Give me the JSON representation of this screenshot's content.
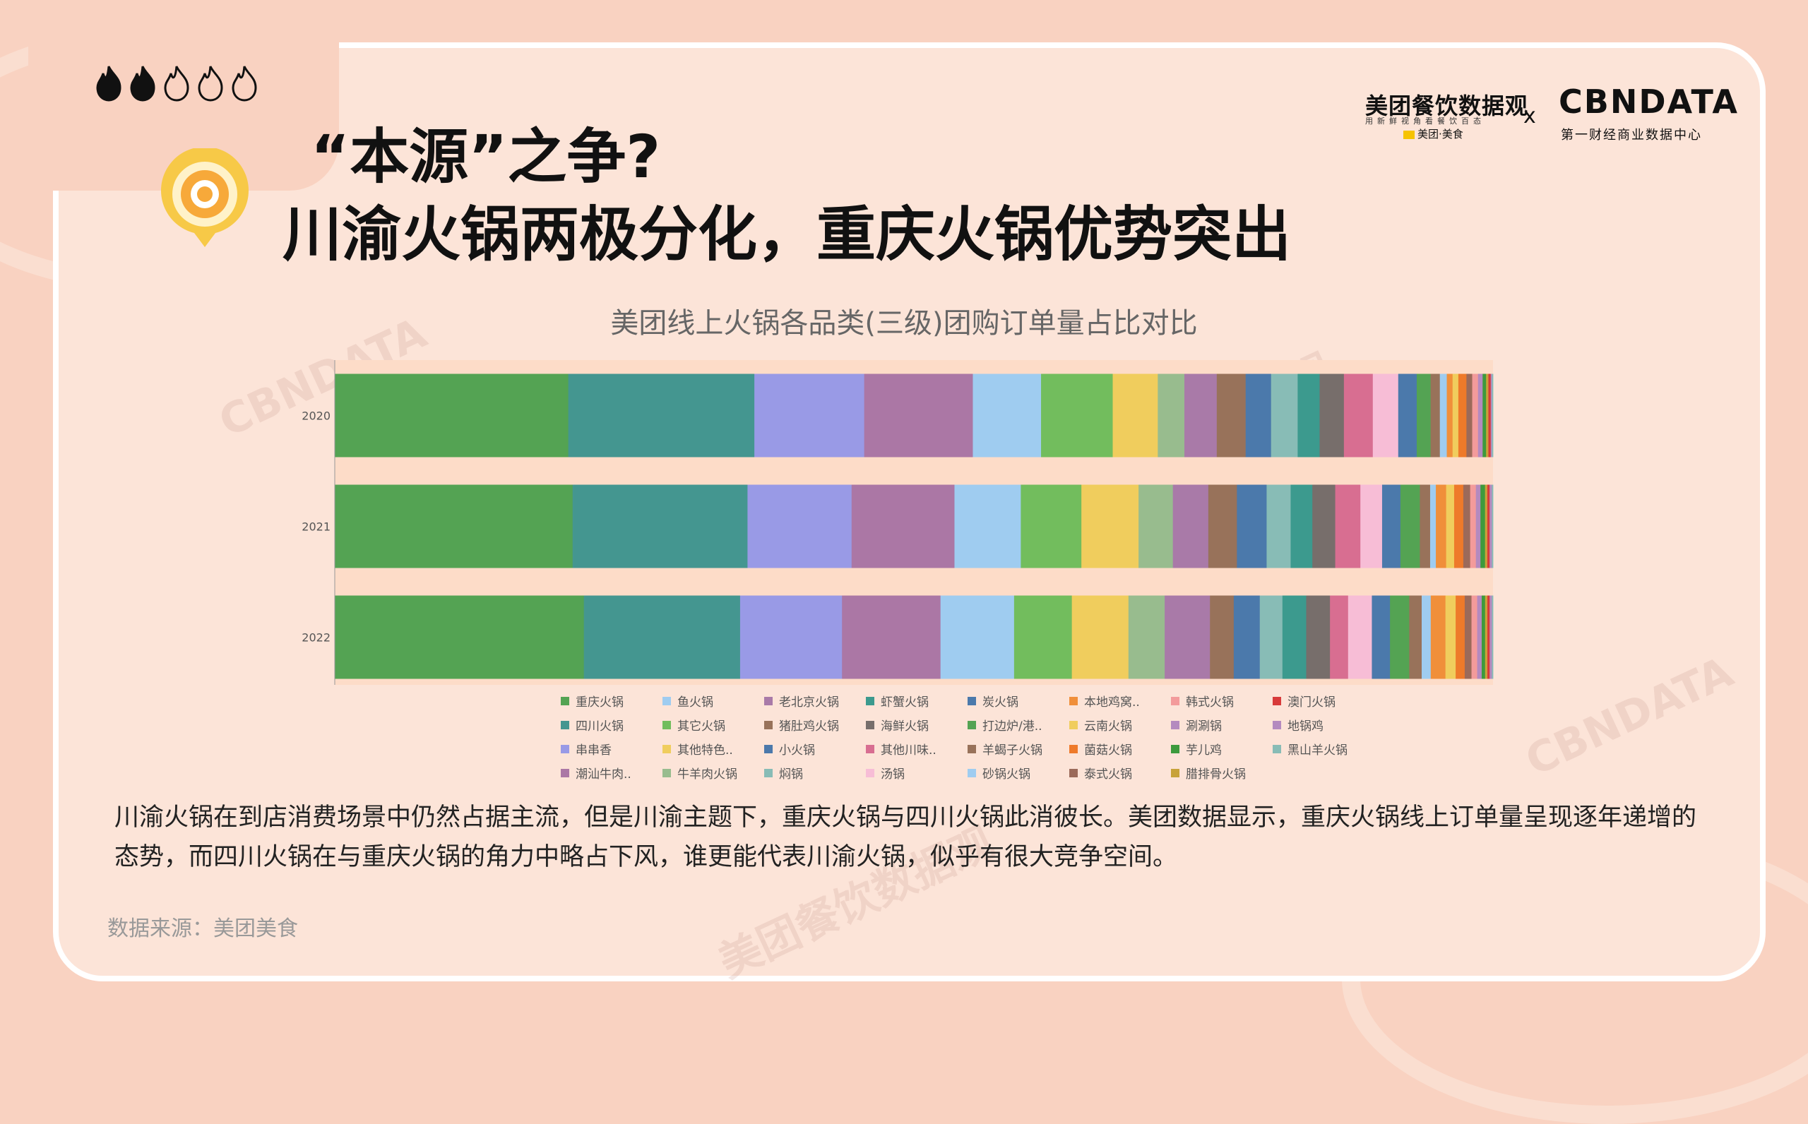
{
  "brand": {
    "meituan_title": "美团餐饮数据观",
    "meituan_sub": "用新鲜视角看餐饮百态",
    "meituan_badge": "美团·美食",
    "cross": "x",
    "cbn_title": "CBNDATA",
    "cbn_sub": "第一财经商业数据中心"
  },
  "icons": {
    "flames": [
      "flame-filled-icon",
      "flame-filled-icon",
      "flame-outline-icon",
      "flame-outline-icon",
      "flame-outline-icon"
    ]
  },
  "heading": {
    "line1": "“本源”之争?",
    "line2": "川渝火锅两极分化，重庆火锅优势突出"
  },
  "chart_data": {
    "type": "bar",
    "orientation": "horizontal",
    "stacked": "100%",
    "title": "美团线上火锅各品类(三级)团购订单量占比对比",
    "categories": [
      "2020",
      "2021",
      "2022"
    ],
    "series": [
      {
        "name": "重庆火锅",
        "color": "#54a353",
        "values": [
          20.2,
          20.8,
          22.0
        ]
      },
      {
        "name": "四川火锅",
        "color": "#449690",
        "values": [
          16.1,
          15.3,
          13.8
        ]
      },
      {
        "name": "串串香",
        "color": "#999ae6",
        "values": [
          9.5,
          9.1,
          9.0
        ]
      },
      {
        "name": "潮汕牛肉火锅",
        "color": "#ab77a5",
        "values": [
          9.4,
          9.0,
          8.7
        ]
      },
      {
        "name": "鱼火锅",
        "color": "#9fccf0",
        "values": [
          5.9,
          5.8,
          6.5
        ]
      },
      {
        "name": "其它火锅",
        "color": "#72bd5d",
        "values": [
          6.2,
          5.3,
          5.1
        ]
      },
      {
        "name": "其他特色火锅",
        "color": "#f0cd5d",
        "values": [
          3.9,
          5.0,
          5.0
        ]
      },
      {
        "name": "牛羊肉火锅",
        "color": "#98bc8e",
        "values": [
          2.3,
          3.0,
          3.2
        ]
      },
      {
        "name": "老北京火锅",
        "color": "#a97aa8",
        "values": [
          2.8,
          3.1,
          4.0
        ]
      },
      {
        "name": "猪肚鸡火锅",
        "color": "#98725a",
        "values": [
          2.5,
          2.5,
          2.1
        ]
      },
      {
        "name": "小火锅",
        "color": "#4b79ab",
        "values": [
          2.2,
          2.6,
          2.3
        ]
      },
      {
        "name": "焖锅",
        "color": "#88bcb6",
        "values": [
          2.3,
          2.1,
          2.0
        ]
      },
      {
        "name": "虾蟹火锅",
        "color": "#3c9a8e",
        "values": [
          1.9,
          1.9,
          2.1
        ]
      },
      {
        "name": "海鲜火锅",
        "color": "#776e6b",
        "values": [
          2.1,
          2.0,
          2.1
        ]
      },
      {
        "name": "其他川味火锅",
        "color": "#d86e91",
        "values": [
          2.5,
          2.2,
          1.6
        ]
      },
      {
        "name": "汤锅",
        "color": "#f7bdd6",
        "values": [
          2.2,
          1.9,
          2.1
        ]
      },
      {
        "name": "炭火锅",
        "color": "#4b79ab",
        "values": [
          1.6,
          1.6,
          1.6
        ]
      },
      {
        "name": "打边炉/港式火锅",
        "color": "#54a353",
        "values": [
          1.2,
          1.7,
          1.7
        ]
      },
      {
        "name": "羊蝎子火锅",
        "color": "#98725a",
        "values": [
          0.8,
          0.9,
          1.1
        ]
      },
      {
        "name": "砂锅火锅",
        "color": "#9fccf0",
        "values": [
          0.6,
          0.5,
          0.8
        ]
      },
      {
        "name": "本地鸡窝火锅",
        "color": "#f08f3a",
        "values": [
          0.5,
          0.9,
          1.3
        ]
      },
      {
        "name": "云南火锅",
        "color": "#f0cd5d",
        "values": [
          0.5,
          0.7,
          0.9
        ]
      },
      {
        "name": "菌菇火锅",
        "color": "#ee7a2a",
        "values": [
          0.7,
          0.8,
          0.8
        ]
      },
      {
        "name": "泰式火锅",
        "color": "#9b6a5a",
        "values": [
          0.5,
          0.6,
          0.6
        ]
      },
      {
        "name": "韩式火锅",
        "color": "#f39b9b",
        "values": [
          0.5,
          0.5,
          0.5
        ]
      },
      {
        "name": "涮涮锅",
        "color": "#b48abf",
        "values": [
          0.4,
          0.4,
          0.4
        ]
      },
      {
        "name": "芋儿鸡",
        "color": "#3d9a3d",
        "values": [
          0.3,
          0.4,
          0.3
        ]
      },
      {
        "name": "腊排骨火锅",
        "color": "#c7a23a",
        "values": [
          0.2,
          0.2,
          0.2
        ]
      },
      {
        "name": "澳门火锅",
        "color": "#d83a3a",
        "values": [
          0.2,
          0.2,
          0.2
        ]
      },
      {
        "name": "地锅鸡",
        "color": "#b48abf",
        "values": [
          0.1,
          0.2,
          0.2
        ]
      },
      {
        "name": "黑山羊火锅",
        "color": "#88bcb6",
        "values": [
          0.1,
          0.1,
          0.1
        ]
      }
    ]
  },
  "legend": [
    {
      "label": "重庆火锅",
      "color": "#54a353"
    },
    {
      "label": "鱼火锅",
      "color": "#9fccf0"
    },
    {
      "label": "老北京火锅",
      "color": "#a97aa8"
    },
    {
      "label": "虾蟹火锅",
      "color": "#3c9a8e"
    },
    {
      "label": "炭火锅",
      "color": "#4b79ab"
    },
    {
      "label": "本地鸡窝..",
      "color": "#f08f3a"
    },
    {
      "label": "韩式火锅",
      "color": "#f39b9b"
    },
    {
      "label": "澳门火锅",
      "color": "#d83a3a"
    },
    {
      "label": "四川火锅",
      "color": "#449690"
    },
    {
      "label": "其它火锅",
      "color": "#72bd5d"
    },
    {
      "label": "猪肚鸡火锅",
      "color": "#98725a"
    },
    {
      "label": "海鲜火锅",
      "color": "#776e6b"
    },
    {
      "label": "打边炉/港..",
      "color": "#54a353"
    },
    {
      "label": "云南火锅",
      "color": "#f0cd5d"
    },
    {
      "label": "涮涮锅",
      "color": "#b48abf"
    },
    {
      "label": "地锅鸡",
      "color": "#b48abf"
    },
    {
      "label": "串串香",
      "color": "#999ae6"
    },
    {
      "label": "其他特色..",
      "color": "#f0cd5d"
    },
    {
      "label": "小火锅",
      "color": "#4b79ab"
    },
    {
      "label": "其他川味..",
      "color": "#d86e91"
    },
    {
      "label": "羊蝎子火锅",
      "color": "#98725a"
    },
    {
      "label": "菌菇火锅",
      "color": "#ee7a2a"
    },
    {
      "label": "芋儿鸡",
      "color": "#3d9a3d"
    },
    {
      "label": "黑山羊火锅",
      "color": "#88bcb6"
    },
    {
      "label": "潮汕牛肉..",
      "color": "#ab77a5"
    },
    {
      "label": "牛羊肉火锅",
      "color": "#98bc8e"
    },
    {
      "label": "焖锅",
      "color": "#88bcb6"
    },
    {
      "label": "汤锅",
      "color": "#f7bdd6"
    },
    {
      "label": "砂锅火锅",
      "color": "#9fccf0"
    },
    {
      "label": "泰式火锅",
      "color": "#9b6a5a"
    },
    {
      "label": "腊排骨火锅",
      "color": "#c7a23a"
    }
  ],
  "body_text": "川渝火锅在到店消费场景中仍然占据主流，但是川渝主题下，重庆火锅与四川火锅此消彼长。美团数据显示，重庆火锅线上订单量呈现逐年递增的态势，而四川火锅在与重庆火锅的角力中略占下风，谁更能代表川渝火锅，似乎有很大竞争空间。",
  "source": "数据来源：美团美食",
  "watermarks": [
    "美团餐饮数据观",
    "CBNDATA"
  ]
}
